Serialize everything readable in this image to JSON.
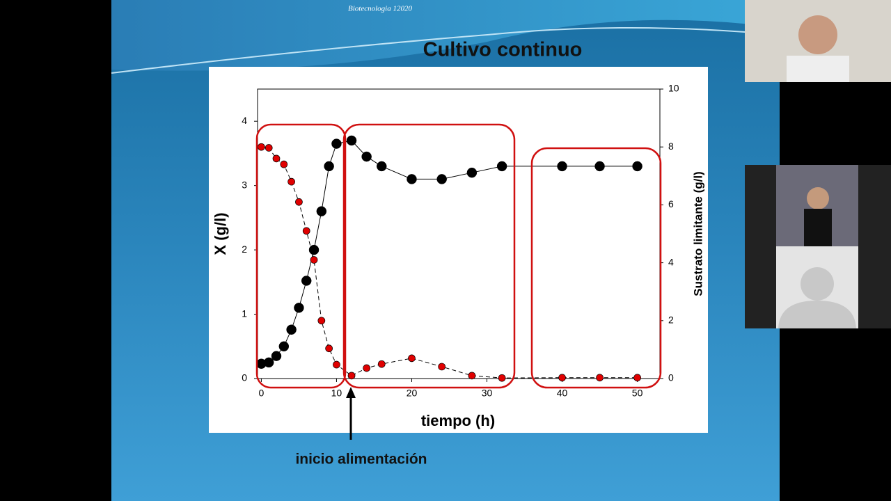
{
  "slide": {
    "header": "Biotecnologia 12020",
    "title": "Cultivo continuo",
    "annotation": "inicio alimentación"
  },
  "chart_data": {
    "type": "line",
    "x_label": "tiempo (h)",
    "y_label": "X (g/l)",
    "y2_label": "Sustrato limitante (g/l)",
    "x": [
      0,
      1,
      2,
      3,
      4,
      5,
      6,
      7,
      8,
      9,
      10,
      12,
      14,
      16,
      20,
      24,
      28,
      32,
      40,
      45,
      50
    ],
    "series": [
      {
        "color": "#000000",
        "values": [
          0.23,
          0.25,
          0.35,
          0.5,
          0.76,
          1.1,
          1.52,
          2.0,
          2.6,
          3.3,
          3.65,
          3.7,
          3.45,
          3.3,
          3.1,
          3.1,
          3.2,
          3.3,
          3.3,
          3.3,
          3.3
        ]
      },
      {
        "color": "#e00000",
        "axis": "y2",
        "dashed": true,
        "values": [
          8.0,
          7.97,
          7.6,
          7.4,
          6.8,
          6.1,
          5.1,
          4.1,
          2.0,
          1.04,
          0.48,
          0.1,
          0.36,
          0.5,
          0.7,
          0.41,
          0.1,
          0.02,
          0.03,
          0.03,
          0.03
        ]
      }
    ],
    "xlim": [
      -0.5,
      53
    ],
    "xticks": [
      0,
      10,
      20,
      30,
      40,
      50
    ],
    "ylim": [
      0,
      4.5
    ],
    "yticks": [
      0,
      1,
      2,
      3,
      4
    ],
    "y2lim": [
      0,
      10
    ],
    "y2ticks": [
      0,
      2,
      4,
      6,
      8,
      10
    ]
  }
}
